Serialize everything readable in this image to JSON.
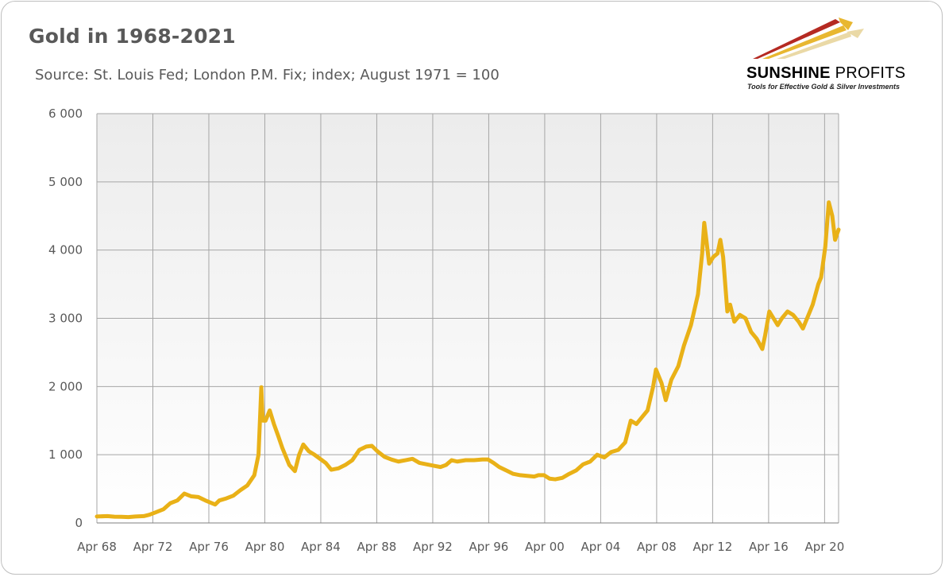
{
  "header": {
    "title": "Gold in 1968-2021",
    "subtitle": "Source: St. Louis Fed; London P.M. Fix; index; August 1971 = 100"
  },
  "logo": {
    "name_bold": "SUNSHINE",
    "name_light": "PROFITS",
    "tagline": "Tools for Effective Gold & Silver Investments",
    "colors": {
      "red": "#b52a22",
      "gold": "#e8b730",
      "light": "#ead9a6"
    }
  },
  "colors": {
    "line": "#e9b117",
    "grid": "#a6a6a6",
    "plot_bg_top": "#ececec",
    "plot_bg_bottom": "#ffffff",
    "text": "#595959"
  },
  "chart_data": {
    "type": "line",
    "title": "Gold in 1968-2021",
    "xlabel": "",
    "ylabel": "",
    "ylim": [
      0,
      6000
    ],
    "xlim": [
      1968.25,
      2021.25
    ],
    "y_ticks": [
      0,
      1000,
      2000,
      3000,
      4000,
      5000,
      6000
    ],
    "y_tick_labels": [
      "0",
      "1 000",
      "2 000",
      "3 000",
      "4 000",
      "5 000",
      "6 000"
    ],
    "x_ticks": [
      1968.25,
      1972.25,
      1976.25,
      1980.25,
      1984.25,
      1988.25,
      1992.25,
      1996.25,
      2000.25,
      2004.25,
      2008.25,
      2012.25,
      2016.25,
      2020.25
    ],
    "x_tick_labels": [
      "Apr 68",
      "Apr 72",
      "Apr 76",
      "Apr 80",
      "Apr 84",
      "Apr 88",
      "Apr 92",
      "Apr 96",
      "Apr 00",
      "Apr 04",
      "Apr 08",
      "Apr 12",
      "Apr 16",
      "Apr 20"
    ],
    "grid": true,
    "legend": "none",
    "series": [
      {
        "color": "#e9b117",
        "x": [
          1968.25,
          1969.0,
          1969.5,
          1970.0,
          1970.5,
          1971.0,
          1971.6,
          1972.0,
          1972.5,
          1973.0,
          1973.5,
          1974.0,
          1974.5,
          1975.0,
          1975.5,
          1976.0,
          1976.7,
          1977.0,
          1977.5,
          1978.0,
          1978.5,
          1979.0,
          1979.5,
          1979.8,
          1980.0,
          1980.1,
          1980.3,
          1980.6,
          1980.9,
          1981.2,
          1981.5,
          1982.0,
          1982.4,
          1982.7,
          1983.0,
          1983.4,
          1983.8,
          1984.2,
          1984.6,
          1985.0,
          1985.5,
          1986.0,
          1986.5,
          1987.0,
          1987.5,
          1987.9,
          1988.3,
          1988.8,
          1989.3,
          1989.8,
          1990.3,
          1990.8,
          1991.3,
          1991.8,
          1992.3,
          1992.8,
          1993.2,
          1993.6,
          1994.0,
          1994.6,
          1995.2,
          1995.8,
          1996.2,
          1996.6,
          1997.0,
          1997.5,
          1998.0,
          1998.5,
          1999.0,
          1999.5,
          1999.8,
          2000.2,
          2000.6,
          2001.0,
          2001.5,
          2002.0,
          2002.5,
          2003.0,
          2003.5,
          2004.0,
          2004.5,
          2005.0,
          2005.5,
          2006.0,
          2006.4,
          2006.8,
          2007.2,
          2007.6,
          2008.0,
          2008.2,
          2008.6,
          2008.9,
          2009.3,
          2009.8,
          2010.2,
          2010.7,
          2011.2,
          2011.5,
          2011.65,
          2011.8,
          2012.0,
          2012.3,
          2012.6,
          2012.8,
          2013.0,
          2013.3,
          2013.5,
          2013.8,
          2014.2,
          2014.6,
          2015.0,
          2015.4,
          2015.8,
          2016.0,
          2016.3,
          2016.6,
          2016.9,
          2017.2,
          2017.6,
          2018.0,
          2018.4,
          2018.7,
          2019.0,
          2019.4,
          2019.8,
          2020.0,
          2020.3,
          2020.55,
          2020.8,
          2021.0,
          2021.25
        ],
        "y": [
          95,
          100,
          92,
          90,
          86,
          95,
          100,
          120,
          160,
          200,
          290,
          330,
          430,
          390,
          380,
          330,
          270,
          330,
          360,
          400,
          480,
          550,
          700,
          1000,
          1990,
          1500,
          1500,
          1650,
          1450,
          1280,
          1100,
          850,
          760,
          1000,
          1150,
          1050,
          1000,
          940,
          880,
          780,
          800,
          850,
          920,
          1070,
          1120,
          1130,
          1050,
          970,
          930,
          900,
          920,
          940,
          880,
          860,
          840,
          820,
          850,
          920,
          900,
          920,
          920,
          930,
          930,
          880,
          820,
          770,
          720,
          700,
          690,
          680,
          700,
          700,
          650,
          640,
          660,
          720,
          770,
          860,
          900,
          1000,
          960,
          1040,
          1070,
          1180,
          1500,
          1450,
          1550,
          1650,
          2000,
          2250,
          2050,
          1800,
          2100,
          2300,
          2600,
          2900,
          3350,
          3950,
          4400,
          4150,
          3800,
          3900,
          3950,
          4150,
          3900,
          3100,
          3200,
          2950,
          3050,
          3000,
          2800,
          2700,
          2550,
          2750,
          3100,
          3000,
          2900,
          3000,
          3100,
          3050,
          2950,
          2850,
          3000,
          3200,
          3500,
          3600,
          4050,
          4700,
          4500,
          4150,
          4300
        ]
      }
    ]
  }
}
